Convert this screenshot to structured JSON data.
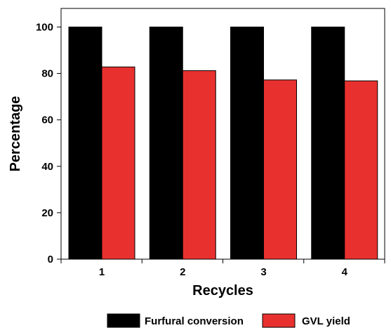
{
  "chart_data": {
    "type": "bar",
    "title": "",
    "xlabel": "Recycles",
    "ylabel": "Percentage",
    "categories": [
      "1",
      "2",
      "3",
      "4"
    ],
    "ylim": [
      0,
      108
    ],
    "yticks": [
      0,
      20,
      40,
      60,
      80,
      100
    ],
    "grid": false,
    "legend_position": "bottom",
    "series": [
      {
        "name": "Furfural conversion",
        "values": [
          100,
          100,
          100,
          100
        ],
        "color": "#000000"
      },
      {
        "name": "GVL yield",
        "values": [
          82.8,
          81.2,
          77.2,
          76.8
        ],
        "color": "#e8312f"
      }
    ]
  }
}
